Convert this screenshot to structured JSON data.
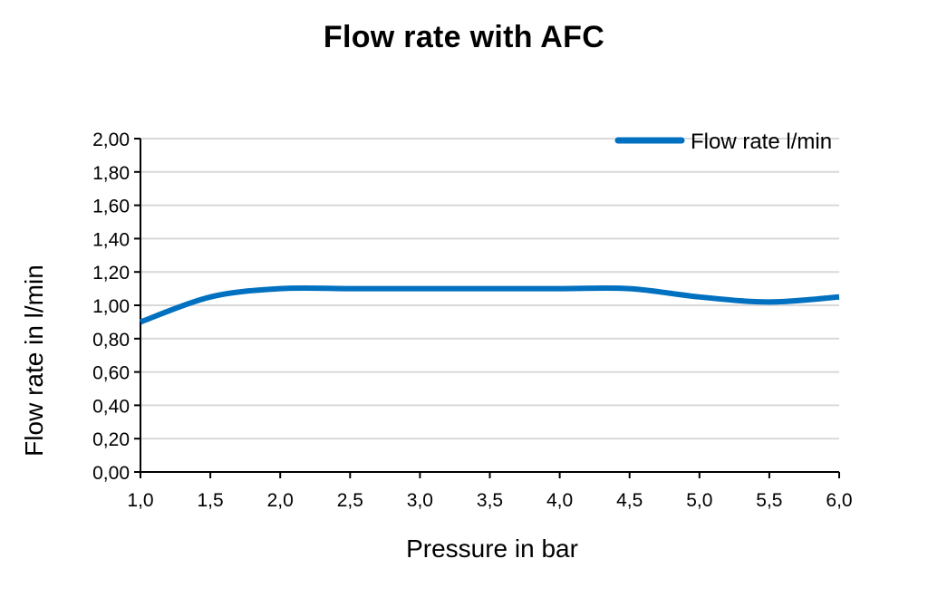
{
  "chart_data": {
    "type": "line",
    "title": "Flow rate with AFC",
    "xlabel": "Pressure in bar",
    "ylabel": "Flow rate in l/min",
    "xlim": [
      1.0,
      6.0
    ],
    "ylim": [
      0.0,
      2.0
    ],
    "x_ticks": [
      "1,0",
      "1,5",
      "2,0",
      "2,5",
      "3,0",
      "3,5",
      "4,0",
      "4,5",
      "5,0",
      "5,5",
      "6,0"
    ],
    "y_ticks": [
      "0,00",
      "0,20",
      "0,40",
      "0,60",
      "0,80",
      "1,00",
      "1,20",
      "1,40",
      "1,60",
      "1,80",
      "2,00"
    ],
    "grid": "horizontal",
    "legend": "top-right",
    "series": [
      {
        "name": "Flow rate l/min",
        "color": "#0070C0",
        "x": [
          1.0,
          1.5,
          2.0,
          2.5,
          3.0,
          3.5,
          4.0,
          4.5,
          5.0,
          5.5,
          6.0
        ],
        "values": [
          0.9,
          1.05,
          1.1,
          1.1,
          1.1,
          1.1,
          1.1,
          1.1,
          1.05,
          1.02,
          1.05
        ]
      }
    ]
  }
}
